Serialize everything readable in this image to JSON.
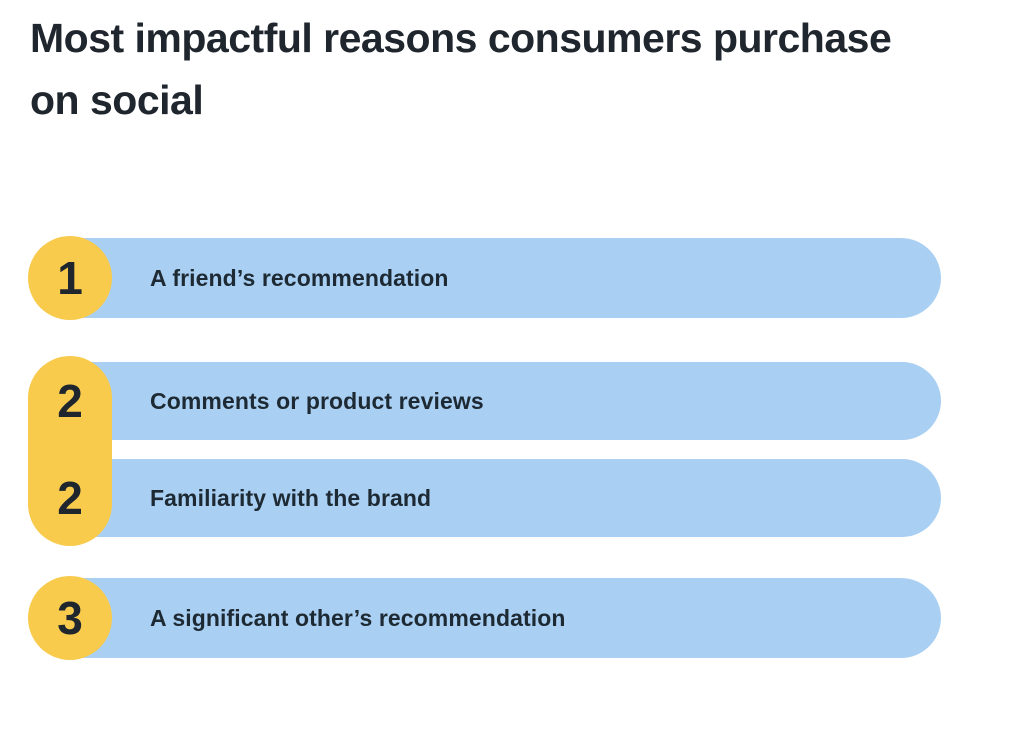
{
  "title": "Most impactful reasons consumers purchase on social",
  "chart_data": {
    "type": "table",
    "title": "Most impactful reasons consumers purchase on social",
    "columns": [
      "rank",
      "reason"
    ],
    "rows": [
      {
        "rank": "1",
        "label": "A friend’s recommendation"
      },
      {
        "rank": "2",
        "label": "Comments or product reviews"
      },
      {
        "rank": "2",
        "label": "Familiarity with the brand"
      },
      {
        "rank": "3",
        "label": "A significant other’s recommendation"
      }
    ],
    "notes": "Ranked list infographic; ranks 2 and 2 are tied and share a merged badge capsule",
    "colors": {
      "badge": "#F8CB4D",
      "bar": "#A9CFF3",
      "text": "#20262E",
      "background": "#FFFFFF"
    }
  }
}
